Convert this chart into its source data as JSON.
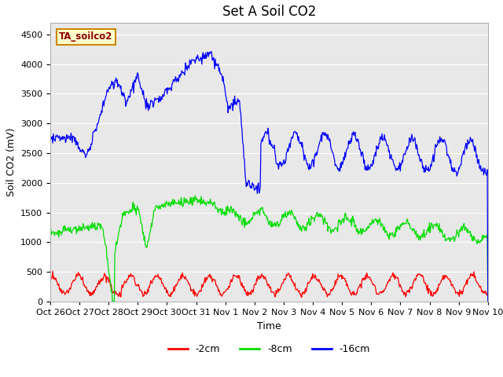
{
  "title": "Set A Soil CO2",
  "ylabel": "Soil CO2 (mV)",
  "xlabel": "Time",
  "xlim": [
    0,
    15
  ],
  "ylim": [
    0,
    4700
  ],
  "yticks": [
    0,
    500,
    1000,
    1500,
    2000,
    2500,
    3000,
    3500,
    4000,
    4500
  ],
  "xtick_labels": [
    "Oct 26",
    "Oct 27",
    "Oct 28",
    "Oct 29",
    "Oct 30",
    "Oct 31",
    "Nov 1",
    "Nov 2",
    "Nov 3",
    "Nov 4",
    "Nov 5",
    "Nov 6",
    "Nov 7",
    "Nov 8",
    "Nov 9",
    "Nov 10"
  ],
  "legend_label": "TA_soilco2",
  "legend_box_color": "#ffffcc",
  "legend_box_border": "#cc8800",
  "line_colors": {
    "red": "#ff0000",
    "green": "#00dd00",
    "blue": "#0000ff"
  },
  "line_labels": [
    "-2cm",
    "-8cm",
    "-16cm"
  ],
  "bg_color": "#e8e8e8",
  "plot_bg_color": "#e8e8e8",
  "grid_color": "#ffffff",
  "title_fontsize": 12,
  "axis_label_fontsize": 9,
  "tick_fontsize": 8
}
